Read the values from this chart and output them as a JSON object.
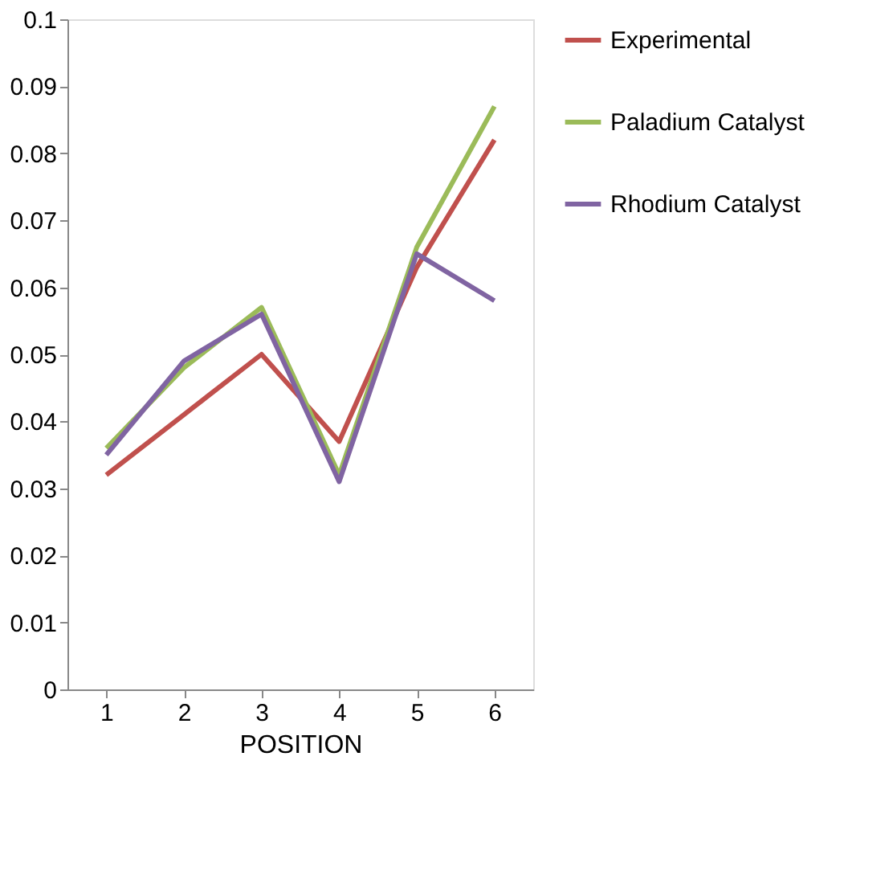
{
  "chart_data": {
    "type": "line",
    "xlabel": "POSITION",
    "categories": [
      "1",
      "2",
      "3",
      "4",
      "5",
      "6"
    ],
    "series": [
      {
        "name": "Experimental",
        "color": "#c0504d",
        "values": [
          0.032,
          0.041,
          0.05,
          0.037,
          0.063,
          0.082
        ]
      },
      {
        "name": "Paladium Catalyst",
        "color": "#9bbb59",
        "values": [
          0.036,
          0.048,
          0.057,
          0.032,
          0.066,
          0.087
        ]
      },
      {
        "name": "Rhodium Catalyst",
        "color": "#8064a2",
        "values": [
          0.035,
          0.049,
          0.056,
          0.031,
          0.065,
          0.058
        ]
      }
    ],
    "ylim": [
      0,
      0.1
    ],
    "yticks": [
      0,
      0.01,
      0.02,
      0.03,
      0.04,
      0.05,
      0.06,
      0.07,
      0.08,
      0.09,
      0.1
    ],
    "grid": false,
    "legend": "right",
    "marker": "none",
    "line_style": "solid"
  }
}
